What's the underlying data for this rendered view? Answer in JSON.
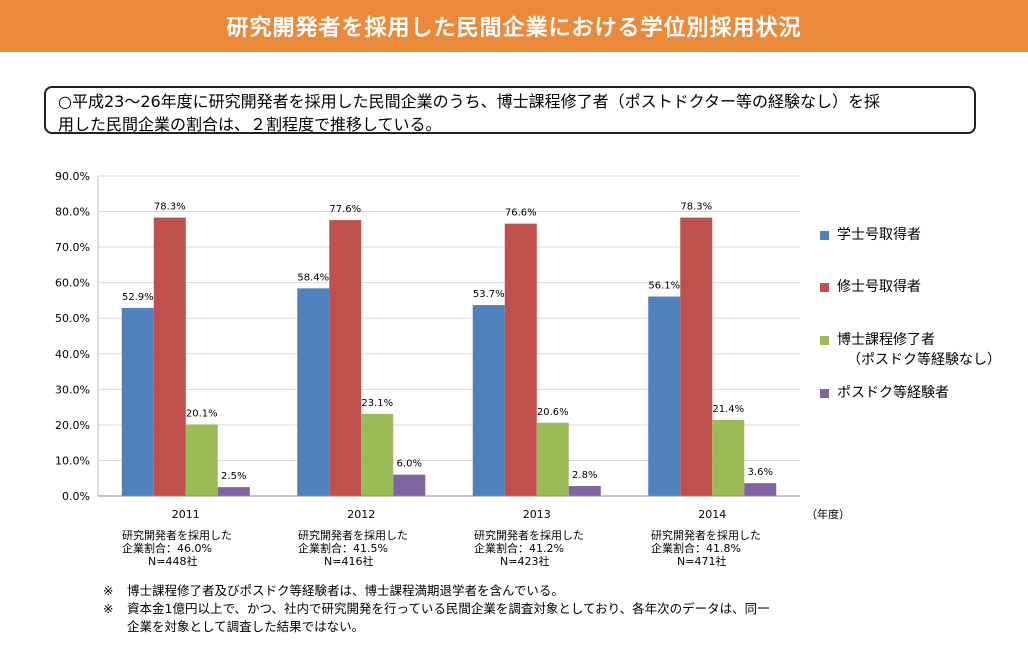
{
  "banner": {
    "title": "研究開発者を採用した民間企業における学位別採用状況"
  },
  "summary": {
    "line1": "○平成23～26年度に研究開発者を採用した民間企業のうち、博士課程修了者（ポストドクター等の経験なし）を採",
    "line2": "用した民間企業の割合は、２割程度で推移している。"
  },
  "chart_data": {
    "type": "bar",
    "categories": [
      "2011",
      "2012",
      "2013",
      "2014"
    ],
    "x_unit": "（年度）",
    "ylim": [
      0,
      90
    ],
    "yticks": [
      "0.0%",
      "10.0%",
      "20.0%",
      "30.0%",
      "40.0%",
      "50.0%",
      "60.0%",
      "70.0%",
      "80.0%",
      "90.0%"
    ],
    "grid": true,
    "legend_position": "right",
    "series": [
      {
        "name": "学士号取得者",
        "color": "#4f81bd",
        "values": [
          52.9,
          58.4,
          53.7,
          56.1
        ],
        "labels": [
          "52.9%",
          "58.4%",
          "53.7%",
          "56.1%"
        ]
      },
      {
        "name": "修士号取得者",
        "color": "#c0504d",
        "values": [
          78.3,
          77.6,
          76.6,
          78.3
        ],
        "labels": [
          "78.3%",
          "77.6%",
          "76.6%",
          "78.3%"
        ]
      },
      {
        "name": "博士課程修了者",
        "name_line2": "（ポスドク等経験なし）",
        "color": "#9bbb59",
        "values": [
          20.1,
          23.1,
          20.6,
          21.4
        ],
        "labels": [
          "20.1%",
          "23.1%",
          "20.6%",
          "21.4%"
        ]
      },
      {
        "name": "ポスドク等経験者",
        "color": "#8064a2",
        "values": [
          2.5,
          6.0,
          2.8,
          3.6
        ],
        "labels": [
          "2.5%",
          "6.0%",
          "2.8%",
          "3.6%"
        ]
      }
    ]
  },
  "year_notes": [
    {
      "line1": "研究開発者を採用した",
      "line2": "企業割合：46.0%",
      "line3": "N=448社"
    },
    {
      "line1": "研究開発者を採用した",
      "line2": "企業割合：41.5%",
      "line3": "N=416社"
    },
    {
      "line1": "研究開発者を採用した",
      "line2": "企業割合：41.2%",
      "line3": "N=423社"
    },
    {
      "line1": "研究開発者を採用した",
      "line2": "企業割合：41.8%",
      "line3": "N=471社"
    }
  ],
  "footnotes": [
    {
      "mark": "※",
      "line1": "博士課程修了者及びポスドク等経験者は、博士課程満期退学者を含んでいる。",
      "line2": ""
    },
    {
      "mark": "※",
      "line1": "資本金1億円以上で、かつ、社内で研究開発を行っている民間企業を調査対象としており、各年次のデータは、同一",
      "line2": "企業を対象として調査した結果ではない。"
    }
  ]
}
